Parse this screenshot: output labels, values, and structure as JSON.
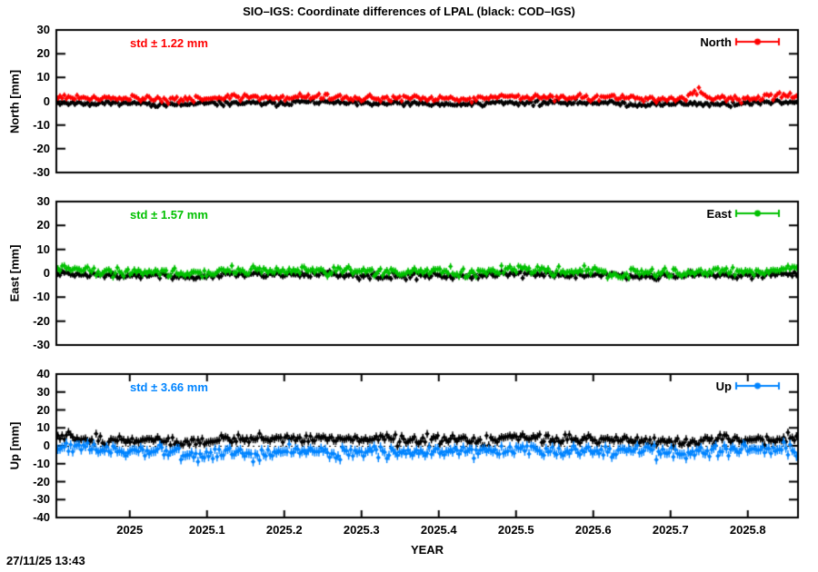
{
  "title": "SIO–IGS: Coordinate differences of LPAL (black: COD–IGS)",
  "xlabel": "YEAR",
  "timestamp": "27/11/25 13:43",
  "colors": {
    "frame": "#000000",
    "reference_series": "#000000",
    "north": "#ff0000",
    "east": "#00c000",
    "up": "#0084ff"
  },
  "chart_data": [
    {
      "type": "scatter",
      "name": "North",
      "ylabel": "North [mm]",
      "std_label": "std ± 1.22 mm",
      "legend": "North",
      "color": "#ff0000",
      "ylim": [
        -30,
        30
      ],
      "yticks": [
        "30",
        "20",
        "10",
        "0",
        "-10",
        "-20",
        "-30"
      ],
      "ytick_values": [
        30,
        20,
        10,
        0,
        -10,
        -20,
        -30
      ],
      "xlim": [
        2024.905,
        2025.865
      ],
      "show_xticks": false,
      "zero_line": true,
      "n_points": 349,
      "series": [
        {
          "name": "COD-IGS (black)",
          "color": "#000000",
          "mean": -0.9,
          "std": 0.65,
          "errbar_mm": 1.0,
          "events": [],
          "seed": 11
        },
        {
          "name": "SIO-IGS (north)",
          "color": "#ff0000",
          "mean": 1.4,
          "std": 0.8,
          "errbar_mm": 1.1,
          "events": [
            {
              "c": 2025.735,
              "w": 0.007,
              "o": 3.2
            }
          ],
          "seed": 21
        }
      ]
    },
    {
      "type": "scatter",
      "name": "East",
      "ylabel": "East [mm]",
      "std_label": "std ± 1.57 mm",
      "legend": "East",
      "color": "#00c000",
      "ylim": [
        -30,
        30
      ],
      "yticks": [
        "30",
        "20",
        "10",
        "0",
        "-10",
        "-20",
        "-30"
      ],
      "ytick_values": [
        30,
        20,
        10,
        0,
        -10,
        -20,
        -30
      ],
      "xlim": [
        2024.905,
        2025.865
      ],
      "show_xticks": false,
      "zero_line": true,
      "n_points": 349,
      "series": [
        {
          "name": "COD-IGS (black)",
          "color": "#000000",
          "mean": -0.8,
          "std": 0.8,
          "errbar_mm": 1.2,
          "events": [],
          "seed": 31
        },
        {
          "name": "SIO-IGS (east)",
          "color": "#00c000",
          "mean": 0.9,
          "std": 1.1,
          "errbar_mm": 1.4,
          "events": [
            {
              "c": 2025.63,
              "w": 0.01,
              "o": -3.2
            },
            {
              "c": 2025.255,
              "w": 0.004,
              "o": -3.0
            }
          ],
          "seed": 41
        }
      ]
    },
    {
      "type": "scatter",
      "name": "Up",
      "ylabel": "Up [mm]",
      "std_label": "std ± 3.66 mm",
      "legend": "Up",
      "color": "#0084ff",
      "ylim": [
        -40,
        40
      ],
      "yticks": [
        "40",
        "30",
        "20",
        "10",
        "0",
        "-10",
        "-20",
        "-30",
        "-40"
      ],
      "ytick_values": [
        40,
        30,
        20,
        10,
        0,
        -10,
        -20,
        -30,
        -40
      ],
      "xlim": [
        2024.905,
        2025.865
      ],
      "show_xticks": true,
      "zero_line": true,
      "n_points": 349,
      "series": [
        {
          "name": "COD-IGS (black)",
          "color": "#000000",
          "mean": 3.3,
          "std": 1.7,
          "errbar_mm": 2.2,
          "events": [
            {
              "c": 2025.33,
              "w": 0.012,
              "o": 2.2
            },
            {
              "c": 2025.12,
              "w": 0.01,
              "o": 1.5
            }
          ],
          "seed": 51
        },
        {
          "name": "SIO-IGS (up)",
          "color": "#0084ff",
          "mean": -2.6,
          "std": 2.0,
          "errbar_mm": 2.6,
          "events": [
            {
              "c": 2025.17,
              "w": 0.03,
              "o": -3.2
            },
            {
              "c": 2025.27,
              "w": 0.018,
              "o": -2.6
            },
            {
              "c": 2025.08,
              "w": 0.012,
              "o": -2.2
            },
            {
              "c": 2025.55,
              "w": 0.02,
              "o": -1.8
            }
          ],
          "seed": 61
        }
      ]
    }
  ],
  "xticks": [
    "2025",
    "2025.1",
    "2025.2",
    "2025.3",
    "2025.4",
    "2025.5",
    "2025.6",
    "2025.7",
    "2025.8"
  ],
  "xtick_values": [
    2025,
    2025.1,
    2025.2,
    2025.3,
    2025.4,
    2025.5,
    2025.6,
    2025.7,
    2025.8
  ]
}
